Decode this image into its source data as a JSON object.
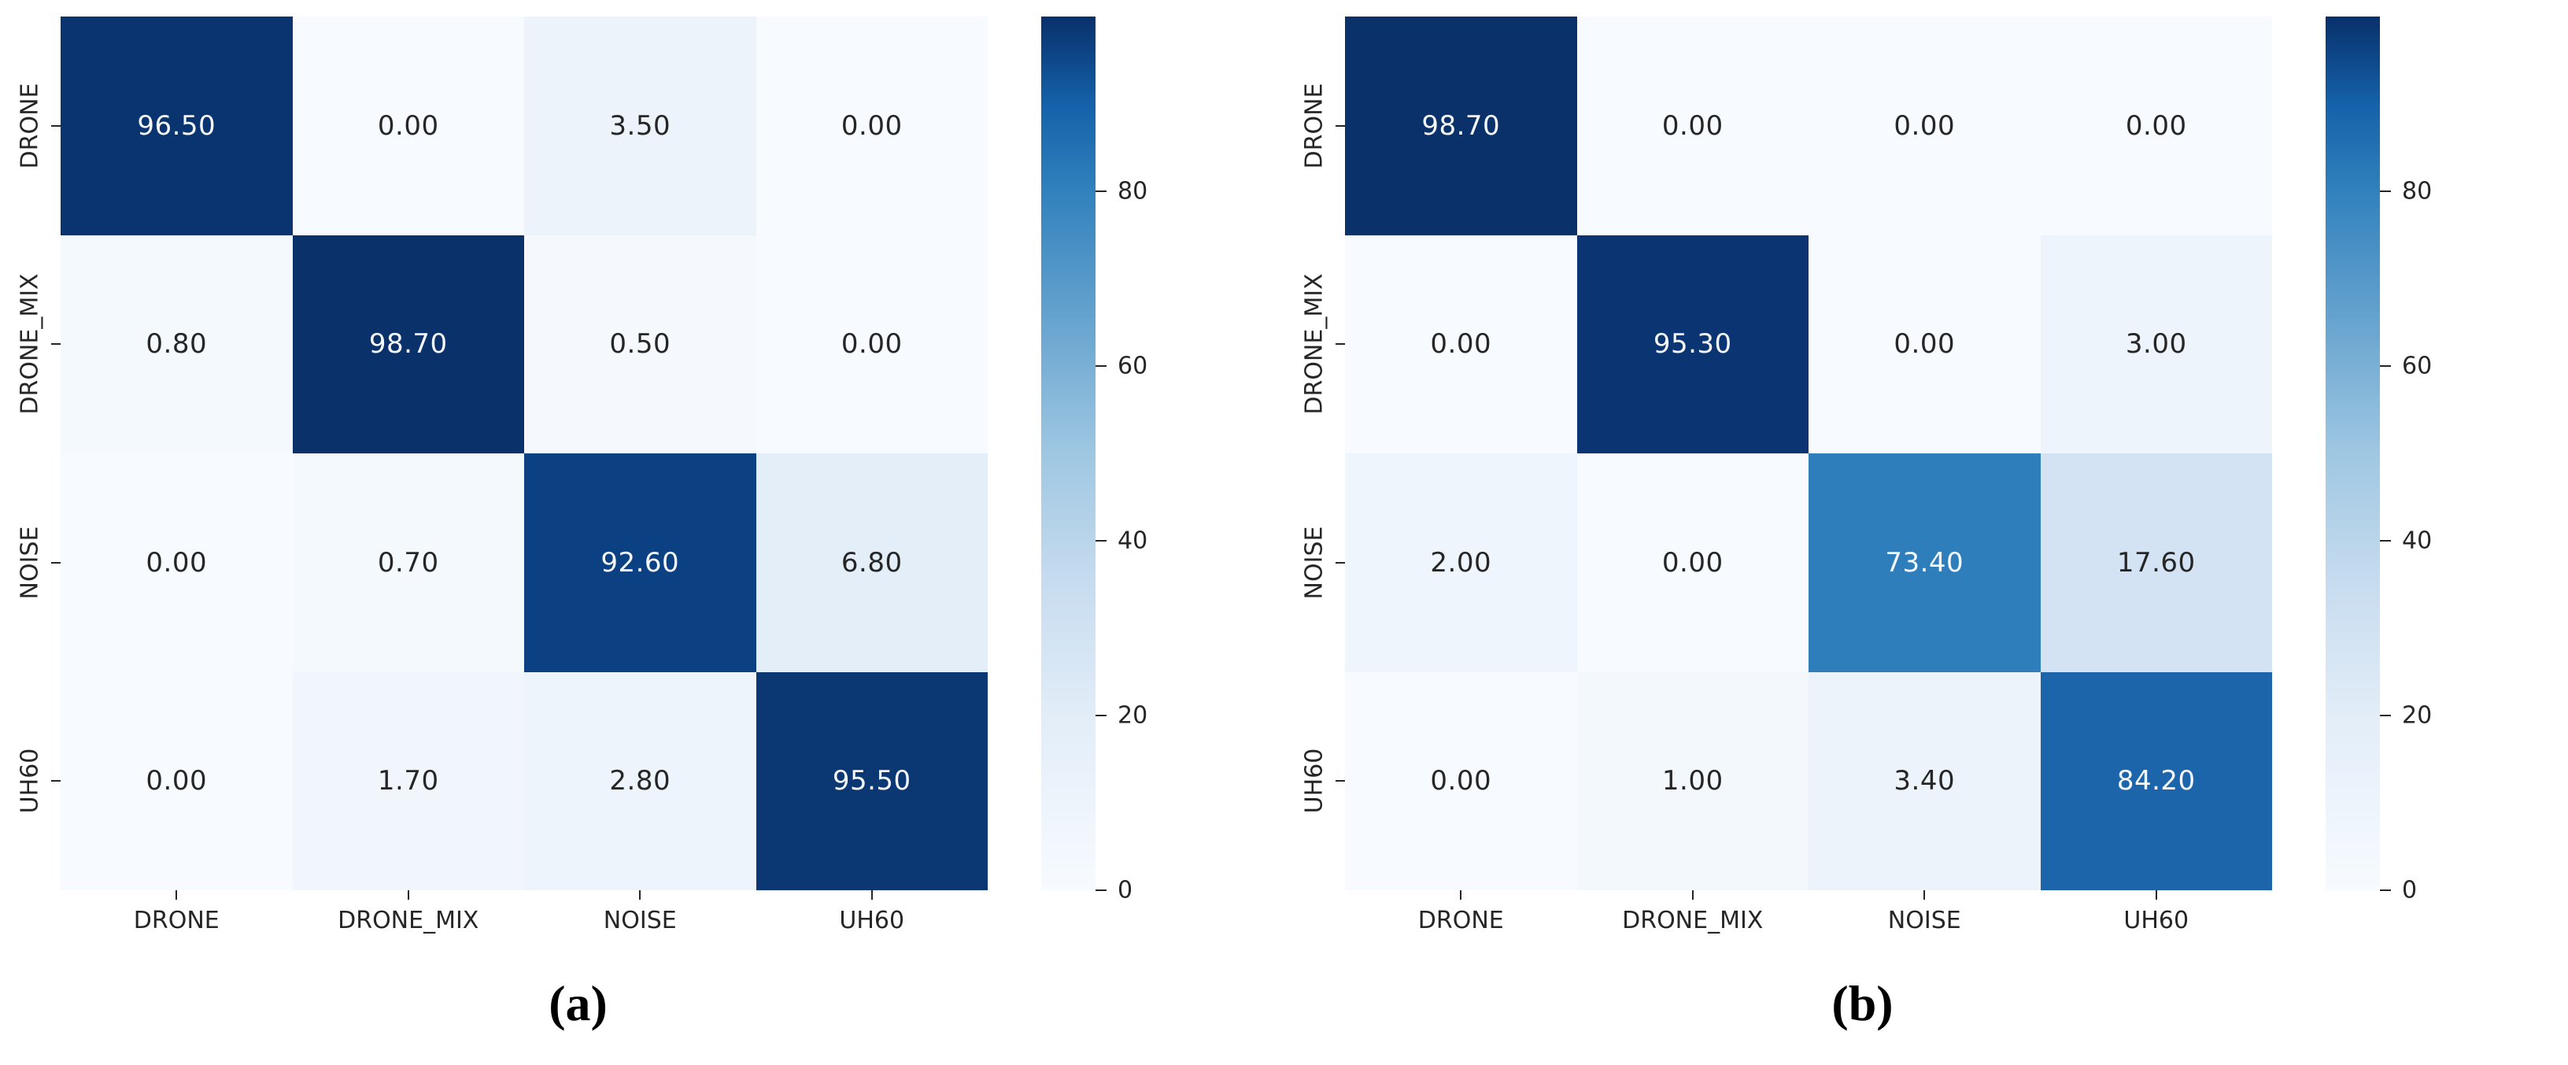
{
  "figure": {
    "background": "#ffffff",
    "cell_text_dark": "#262626",
    "cell_text_light": "#f5f8fc",
    "tick_color": "#262626",
    "colormap_name": "Blues"
  },
  "colorbar": {
    "tick_labels": [
      "80",
      "60",
      "40",
      "20",
      "0"
    ],
    "gradient_bottom_to_top": [
      "#f7fbff",
      "#e2edf8",
      "#c7dcef",
      "#9fc7e2",
      "#67a4cf",
      "#3181bd",
      "#1561a9",
      "#08306b"
    ]
  },
  "chart_data": [
    {
      "type": "heatmap",
      "caption": "(a)",
      "colormap": "Blues",
      "vmin": 0,
      "vmax": 100,
      "x_categories": [
        "DRONE",
        "DRONE_MIX",
        "NOISE",
        "UH60"
      ],
      "y_categories": [
        "DRONE",
        "DRONE_MIX",
        "NOISE",
        "UH60"
      ],
      "values": [
        [
          96.5,
          0.0,
          3.5,
          0.0
        ],
        [
          0.8,
          98.7,
          0.5,
          0.0
        ],
        [
          0.0,
          0.7,
          92.6,
          6.8
        ],
        [
          0.0,
          1.7,
          2.8,
          95.5
        ]
      ],
      "cell_labels": [
        [
          "96.50",
          "0.00",
          "3.50",
          "0.00"
        ],
        [
          "0.80",
          "98.70",
          "0.50",
          "0.00"
        ],
        [
          "0.00",
          "0.70",
          "92.60",
          "6.80"
        ],
        [
          "0.00",
          "1.70",
          "2.80",
          "95.50"
        ]
      ],
      "cell_colors": [
        [
          "#0a3470",
          "#f7fbff",
          "#ecf3fa",
          "#f7fbff"
        ],
        [
          "#f4f9fd",
          "#0a3169",
          "#f5f9fe",
          "#f7fbff"
        ],
        [
          "#f7fbff",
          "#f4f9fd",
          "#0b4083",
          "#e4eef8"
        ],
        [
          "#f7fbff",
          "#f0f6fc",
          "#edf4fb",
          "#0b3773"
        ]
      ],
      "colorbar_ticks": [
        80,
        60,
        40,
        20,
        0
      ],
      "legend_position": "right",
      "grid": false
    },
    {
      "type": "heatmap",
      "caption": "(b)",
      "colormap": "Blues",
      "vmin": 0,
      "vmax": 100,
      "x_categories": [
        "DRONE",
        "DRONE_MIX",
        "NOISE",
        "UH60"
      ],
      "y_categories": [
        "DRONE",
        "DRONE_MIX",
        "NOISE",
        "UH60"
      ],
      "values": [
        [
          98.7,
          0.0,
          0.0,
          0.0
        ],
        [
          0.0,
          95.3,
          0.0,
          3.0
        ],
        [
          2.0,
          0.0,
          73.4,
          17.6
        ],
        [
          0.0,
          1.0,
          3.4,
          84.2
        ]
      ],
      "cell_labels": [
        [
          "98.70",
          "0.00",
          "0.00",
          "0.00"
        ],
        [
          "0.00",
          "95.30",
          "0.00",
          "3.00"
        ],
        [
          "2.00",
          "0.00",
          "73.40",
          "17.60"
        ],
        [
          "0.00",
          "1.00",
          "3.40",
          "84.20"
        ]
      ],
      "cell_colors": [
        [
          "#0a3169",
          "#f7fbff",
          "#f7fbff",
          "#f7fbff"
        ],
        [
          "#f7fbff",
          "#0b3572",
          "#f7fbff",
          "#edf4fb"
        ],
        [
          "#eff5fc",
          "#f7fbff",
          "#2e7ebc",
          "#d3e3f3"
        ],
        [
          "#f7fbff",
          "#f3f8fd",
          "#ecf3fa",
          "#1c65ab"
        ]
      ],
      "colorbar_ticks": [
        80,
        60,
        40,
        20,
        0
      ],
      "legend_position": "right",
      "grid": false
    }
  ]
}
